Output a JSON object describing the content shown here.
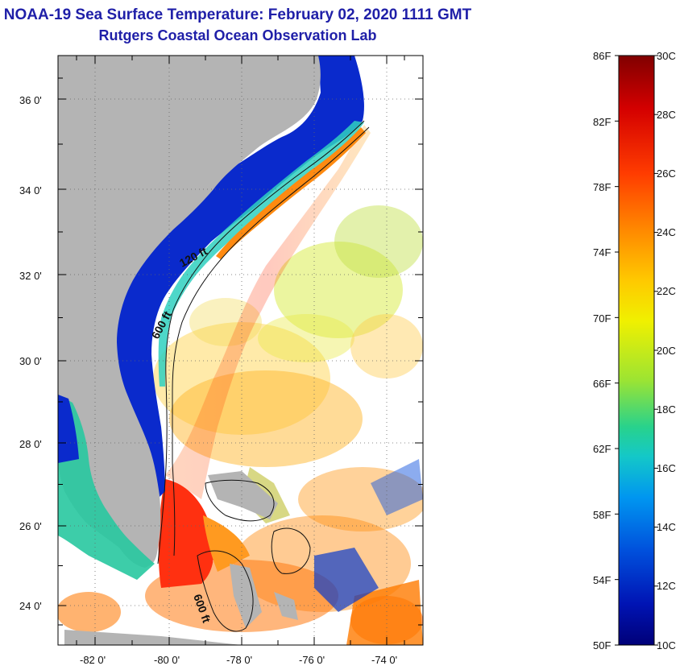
{
  "header": {
    "title": "NOAA-19 Sea Surface Temperature:  February 02, 2020 1111 GMT",
    "subtitle": "Rutgers Coastal Ocean Observation Lab"
  },
  "map": {
    "lat_labels": [
      "36 0'",
      "34 0'",
      "32 0'",
      "30 0'",
      "28 0'",
      "26 0'",
      "24 0'"
    ],
    "lon_labels": [
      "-82 0'",
      "-80 0'",
      "-78 0'",
      "-76 0'",
      "-74 0'"
    ],
    "isobath_labels": [
      "120 ft",
      "600 ft",
      "600 ft"
    ],
    "land_color": "#b4b4b4",
    "coast_water_color": "#0a2acc"
  },
  "colorbar": {
    "fahrenheit_labels": [
      "86F",
      "82F",
      "78F",
      "74F",
      "70F",
      "66F",
      "62F",
      "58F",
      "54F",
      "50F"
    ],
    "celsius_labels": [
      "30C",
      "28C",
      "26C",
      "24C",
      "22C",
      "20C",
      "18C",
      "16C",
      "14C",
      "12C",
      "10C"
    ],
    "colors": [
      "#800000",
      "#d40000",
      "#ff3c00",
      "#ff8c00",
      "#ffc800",
      "#f0f000",
      "#9de432",
      "#28d28c",
      "#14c8c8",
      "#0096f0",
      "#0050dc",
      "#0014b4",
      "#000078"
    ]
  }
}
